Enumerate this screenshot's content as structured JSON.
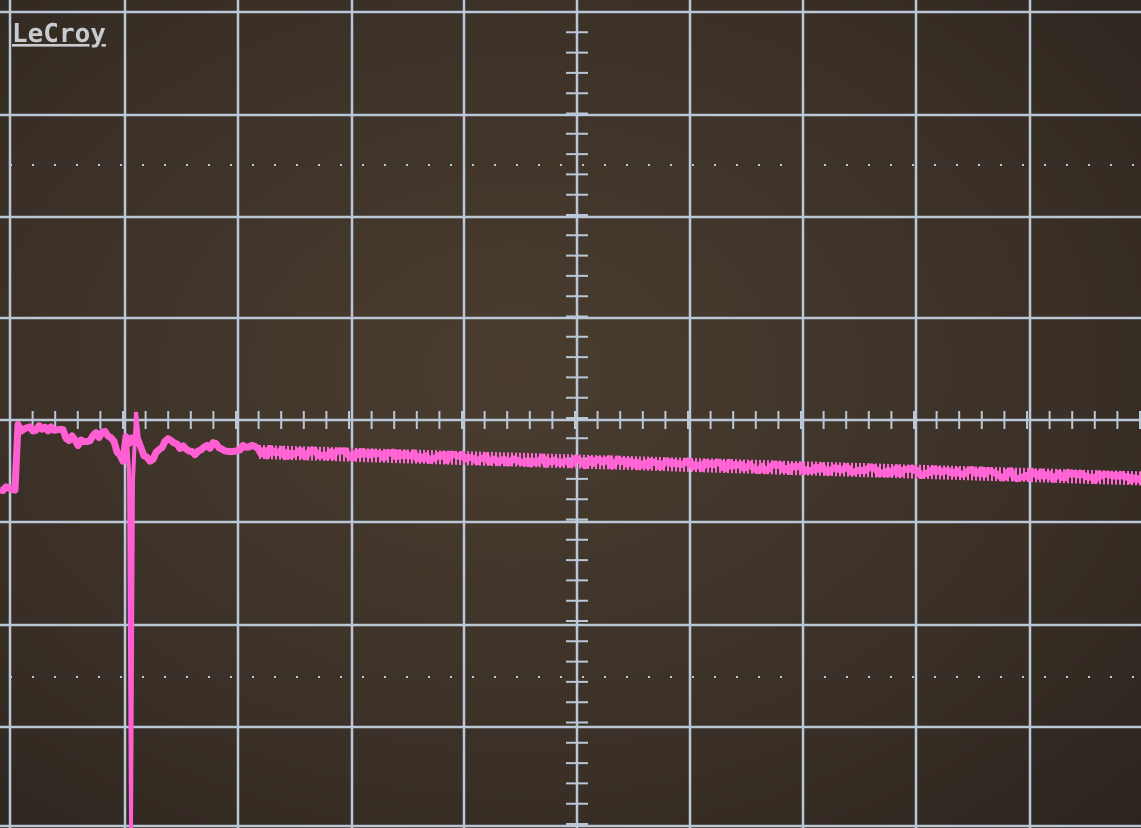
{
  "header": {
    "brand": "LeCroy"
  }
}
